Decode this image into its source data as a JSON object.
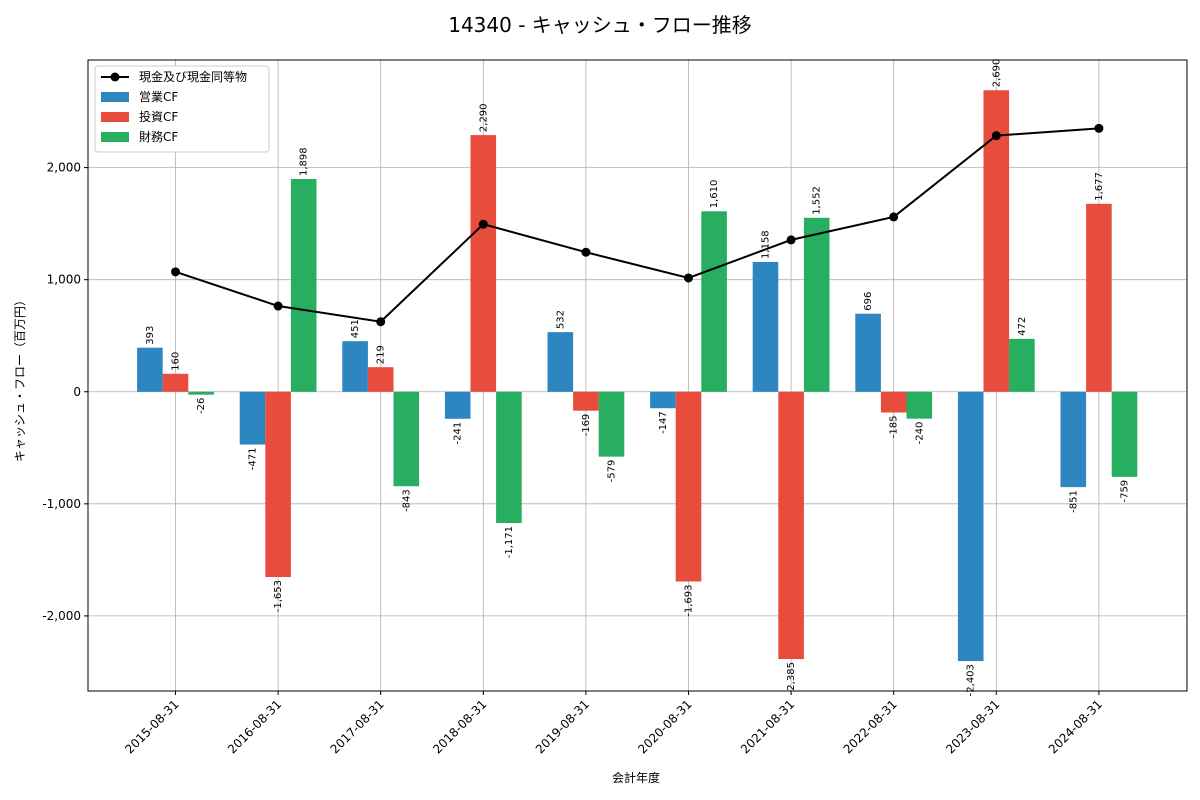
{
  "chart_data": {
    "type": "bar",
    "title": "14340 - キャッシュ・フロー推移",
    "xlabel": "会計年度",
    "ylabel": "キャッシュ・フロー（百万円）",
    "categories": [
      "2015-08-31",
      "2016-08-31",
      "2017-08-31",
      "2018-08-31",
      "2019-08-31",
      "2020-08-31",
      "2021-08-31",
      "2022-08-31",
      "2023-08-31",
      "2024-08-31"
    ],
    "series": [
      {
        "name": "営業CF",
        "type": "bar",
        "color": "#2E86C1",
        "values": [
          393,
          -471,
          451,
          -241,
          532,
          -147,
          1158,
          696,
          -2403,
          -851
        ],
        "labels": [
          "393",
          "-471",
          "451",
          "-241",
          "532",
          "-147",
          "1,158",
          "696",
          "-2,403",
          "-851"
        ]
      },
      {
        "name": "投資CF",
        "type": "bar",
        "color": "#E74C3C",
        "values": [
          160,
          -1653,
          219,
          2290,
          -169,
          -1693,
          -2385,
          -185,
          2690,
          1677
        ],
        "labels": [
          "160",
          "-1,653",
          "219",
          "2,290",
          "-169",
          "-1,693",
          "-2,385",
          "-185",
          "2,690",
          "1,677"
        ]
      },
      {
        "name": "財務CF",
        "type": "bar",
        "color": "#27AE60",
        "values": [
          -26,
          1898,
          -843,
          -1171,
          -579,
          1610,
          1552,
          -240,
          472,
          -759
        ],
        "labels": [
          "-26",
          "1,898",
          "-843",
          "-1,171",
          "-579",
          "1,610",
          "1,552",
          "-240",
          "472",
          "-759"
        ]
      },
      {
        "name": "現金及び現金同等物",
        "type": "line",
        "color": "#000000",
        "values": [
          1070,
          765,
          625,
          1495,
          1245,
          1015,
          1355,
          1560,
          2285,
          2350
        ]
      }
    ],
    "ylim": [
      -2670,
      2960
    ],
    "yticks": [
      -2000,
      -1000,
      0,
      1000,
      2000
    ],
    "ytick_labels": [
      "-2,000",
      "-1,000",
      "0",
      "1,000",
      "2,000"
    ],
    "grid": true,
    "legend_position": "top-left"
  }
}
